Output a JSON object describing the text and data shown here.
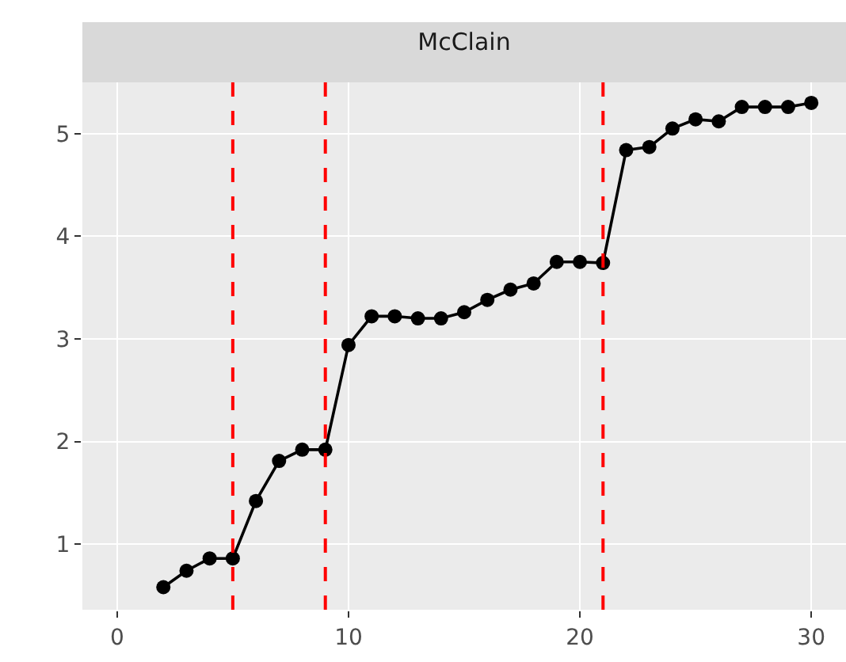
{
  "chart_data": {
    "type": "line",
    "title": "McClain",
    "x": [
      2,
      3,
      4,
      5,
      6,
      7,
      8,
      9,
      10,
      11,
      12,
      13,
      14,
      15,
      16,
      17,
      18,
      19,
      20,
      21,
      22,
      23,
      24,
      25,
      26,
      27,
      28,
      29,
      30
    ],
    "series": [
      {
        "color": "#000000",
        "values": [
          0.58,
          0.74,
          0.86,
          0.86,
          1.42,
          1.81,
          1.92,
          1.92,
          2.94,
          3.22,
          3.22,
          3.2,
          3.2,
          3.26,
          3.38,
          3.48,
          3.54,
          3.75,
          3.75,
          3.74,
          4.84,
          4.87,
          5.05,
          5.14,
          5.12,
          5.26,
          5.26,
          5.26,
          5.3
        ]
      }
    ],
    "xlim": [
      -1.5,
      31.5
    ],
    "xticks": [
      0,
      10,
      20,
      30
    ],
    "ylim": [
      0.36,
      5.5
    ],
    "yticks": [
      1,
      2,
      3,
      4,
      5
    ],
    "ref_lines": [
      {
        "axis": "x",
        "value": 5,
        "color": "#ff0000",
        "line_style": "dashed"
      },
      {
        "axis": "x",
        "value": 9,
        "color": "#ff0000",
        "line_style": "dashed"
      },
      {
        "axis": "x",
        "value": 21,
        "color": "#ff0000",
        "line_style": "dashed"
      }
    ],
    "grid": true,
    "marker": "circle",
    "line_style": "solid"
  }
}
